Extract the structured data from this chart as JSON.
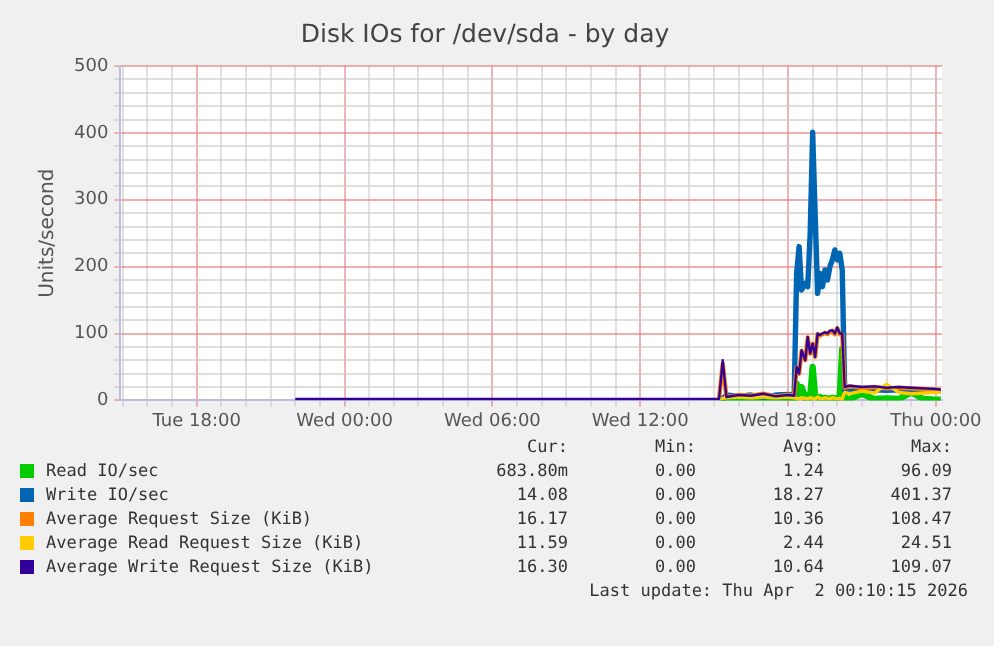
{
  "chart_data": {
    "type": "line",
    "title": "Disk IOs for /dev/sda - by day",
    "ylabel": "Units/second",
    "x": [
      "2026-03-31T22:00",
      "2026-04-01T00:00",
      "2026-04-01T02:00",
      "2026-04-01T04:00",
      "2026-04-01T06:00",
      "2026-04-01T08:00",
      "2026-04-01T10:00",
      "2026-04-01T12:00",
      "2026-04-01T14:00",
      "2026-04-01T15:12",
      "2026-04-01T15:21",
      "2026-04-01T15:30",
      "2026-04-01T16:00",
      "2026-04-01T16:30",
      "2026-04-01T17:00",
      "2026-04-01T17:30",
      "2026-04-01T18:00",
      "2026-04-01T18:15",
      "2026-04-01T18:21",
      "2026-04-01T18:27",
      "2026-04-01T18:33",
      "2026-04-01T18:42",
      "2026-04-01T18:48",
      "2026-04-01T18:54",
      "2026-04-01T19:00",
      "2026-04-01T19:06",
      "2026-04-01T19:12",
      "2026-04-01T19:18",
      "2026-04-01T19:24",
      "2026-04-01T19:30",
      "2026-04-01T19:36",
      "2026-04-01T19:42",
      "2026-04-01T19:48",
      "2026-04-01T19:54",
      "2026-04-01T20:00",
      "2026-04-01T20:06",
      "2026-04-01T20:12",
      "2026-04-01T20:18",
      "2026-04-01T20:30",
      "2026-04-01T21:00",
      "2026-04-01T21:30",
      "2026-04-01T22:00",
      "2026-04-01T22:30",
      "2026-04-01T23:00",
      "2026-04-01T23:30",
      "2026-04-02T00:00",
      "2026-04-02T00:12"
    ],
    "xlim": [
      "2026-03-31T14:54",
      "2026-04-02T00:15"
    ],
    "xticks": [
      {
        "value": "2026-03-31T15:00",
        "label": null
      },
      {
        "value": "2026-03-31T16:00",
        "label": null
      },
      {
        "value": "2026-03-31T17:00",
        "label": null
      },
      {
        "value": "2026-03-31T18:00",
        "label": "Tue 18:00"
      },
      {
        "value": "2026-03-31T19:00",
        "label": null
      },
      {
        "value": "2026-03-31T20:00",
        "label": null
      },
      {
        "value": "2026-03-31T21:00",
        "label": null
      },
      {
        "value": "2026-03-31T22:00",
        "label": null
      },
      {
        "value": "2026-03-31T23:00",
        "label": null
      },
      {
        "value": "2026-04-01T00:00",
        "label": "Wed 00:00"
      },
      {
        "value": "2026-04-01T01:00",
        "label": null
      },
      {
        "value": "2026-04-01T02:00",
        "label": null
      },
      {
        "value": "2026-04-01T03:00",
        "label": null
      },
      {
        "value": "2026-04-01T04:00",
        "label": null
      },
      {
        "value": "2026-04-01T05:00",
        "label": null
      },
      {
        "value": "2026-04-01T06:00",
        "label": "Wed 06:00"
      },
      {
        "value": "2026-04-01T07:00",
        "label": null
      },
      {
        "value": "2026-04-01T08:00",
        "label": null
      },
      {
        "value": "2026-04-01T09:00",
        "label": null
      },
      {
        "value": "2026-04-01T10:00",
        "label": null
      },
      {
        "value": "2026-04-01T11:00",
        "label": null
      },
      {
        "value": "2026-04-01T12:00",
        "label": "Wed 12:00"
      },
      {
        "value": "2026-04-01T13:00",
        "label": null
      },
      {
        "value": "2026-04-01T14:00",
        "label": null
      },
      {
        "value": "2026-04-01T15:00",
        "label": null
      },
      {
        "value": "2026-04-01T16:00",
        "label": null
      },
      {
        "value": "2026-04-01T17:00",
        "label": null
      },
      {
        "value": "2026-04-01T18:00",
        "label": "Wed 18:00"
      },
      {
        "value": "2026-04-01T19:00",
        "label": null
      },
      {
        "value": "2026-04-01T20:00",
        "label": null
      },
      {
        "value": "2026-04-01T21:00",
        "label": null
      },
      {
        "value": "2026-04-01T22:00",
        "label": null
      },
      {
        "value": "2026-04-01T23:00",
        "label": null
      },
      {
        "value": "2026-04-02T00:00",
        "label": "Thu 00:00"
      }
    ],
    "ylim": [
      0,
      500
    ],
    "yticks": [
      0,
      {
        "value": 20,
        "label": null
      },
      {
        "value": 40,
        "label": null
      },
      {
        "value": 60,
        "label": null
      },
      {
        "value": 80,
        "label": null
      },
      100,
      {
        "value": 120,
        "label": null
      },
      {
        "value": 140,
        "label": null
      },
      {
        "value": 160,
        "label": null
      },
      {
        "value": 180,
        "label": null
      },
      200,
      {
        "value": 220,
        "label": null
      },
      {
        "value": 240,
        "label": null
      },
      {
        "value": 260,
        "label": null
      },
      {
        "value": 280,
        "label": null
      },
      300,
      {
        "value": 320,
        "label": null
      },
      {
        "value": 340,
        "label": null
      },
      {
        "value": 360,
        "label": null
      },
      {
        "value": 380,
        "label": null
      },
      400,
      {
        "value": 420,
        "label": null
      },
      {
        "value": 440,
        "label": null
      },
      {
        "value": 460,
        "label": null
      },
      {
        "value": 480,
        "label": null
      },
      500
    ],
    "grid": true,
    "legend": "bottom",
    "marker": "none",
    "line_style": "solid",
    "series": [
      {
        "name": "Read IO/sec",
        "color": "#00cc00",
        "values": [
          null,
          null,
          null,
          null,
          null,
          null,
          null,
          null,
          null,
          0,
          0,
          1,
          2,
          1,
          1,
          1,
          2,
          1,
          25,
          5,
          20,
          3,
          8,
          4,
          50,
          6,
          3,
          5,
          2,
          4,
          3,
          2,
          4,
          3,
          2,
          5,
          77,
          3,
          2,
          10,
          2,
          3,
          2,
          12,
          2,
          1,
          1
        ]
      },
      {
        "name": "Write IO/sec",
        "color": "#0066b3",
        "values": [
          null,
          null,
          null,
          null,
          null,
          null,
          null,
          null,
          null,
          1,
          3,
          8,
          6,
          8,
          5,
          8,
          9,
          8,
          190,
          230,
          165,
          175,
          170,
          250,
          401,
          280,
          160,
          190,
          170,
          195,
          180,
          200,
          210,
          225,
          210,
          220,
          195,
          15,
          16,
          17,
          16,
          15,
          16,
          14,
          15,
          14,
          14
        ]
      },
      {
        "name": "Average Request Size (KiB)",
        "color": "#ff8000",
        "values": [
          null,
          null,
          null,
          null,
          null,
          null,
          null,
          null,
          null,
          2,
          55,
          5,
          8,
          7,
          10,
          6,
          8,
          7,
          49,
          40,
          74,
          60,
          94,
          70,
          84,
          65,
          99,
          97,
          99,
          101,
          99,
          103,
          104,
          99,
          108,
          99,
          99,
          19,
          21,
          19,
          20,
          18,
          19,
          18,
          17,
          16,
          16
        ]
      },
      {
        "name": "Average Read Request Size (KiB)",
        "color": "#ffcc00",
        "values": [
          null,
          null,
          null,
          null,
          null,
          null,
          null,
          null,
          null,
          0,
          3,
          4,
          5,
          4,
          5,
          4,
          5,
          4,
          3,
          2,
          4,
          3,
          2,
          4,
          3,
          2,
          5,
          3,
          2,
          4,
          3,
          2,
          4,
          3,
          2,
          3,
          2,
          12,
          10,
          14,
          11,
          24,
          12,
          10,
          11,
          12,
          12
        ]
      },
      {
        "name": "Average Write Request Size (KiB)",
        "color": "#330099",
        "values": [
          2,
          2,
          2,
          2,
          2,
          2,
          2,
          2,
          2,
          2,
          60,
          5,
          8,
          7,
          10,
          6,
          8,
          7,
          50,
          40,
          75,
          60,
          95,
          70,
          85,
          65,
          100,
          98,
          100,
          102,
          100,
          104,
          105,
          100,
          109,
          100,
          100,
          20,
          22,
          20,
          21,
          19,
          20,
          19,
          18,
          17,
          16
        ]
      }
    ],
    "annotations": [
      "Cur:",
      "Min:",
      "Avg:",
      "Max:",
      "683.80m",
      "0.00",
      "1.24",
      "96.09",
      "14.08",
      "0.00",
      "18.27",
      "401.37",
      "16.17",
      "0.00",
      "10.36",
      "108.47",
      "11.59",
      "0.00",
      "2.44",
      "24.51",
      "16.30",
      "0.00",
      "10.64",
      "109.07",
      "Last update: Thu Apr  2 00:10:15 2026"
    ]
  }
}
